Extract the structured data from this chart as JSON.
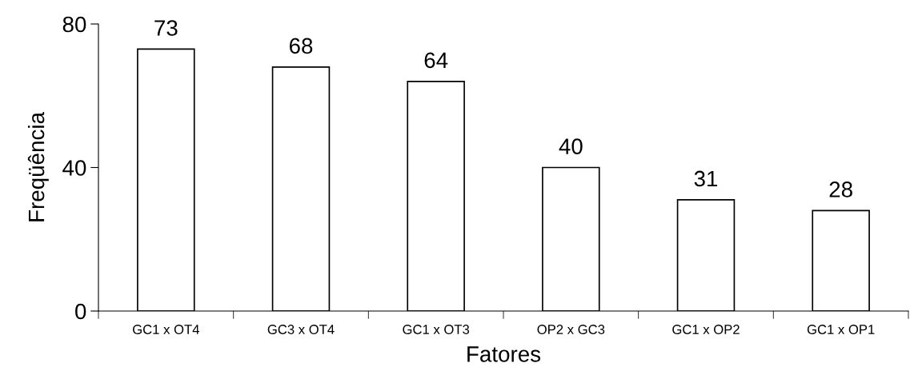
{
  "chart_data": {
    "type": "bar",
    "xlabel": "Fatores",
    "ylabel": "Freqüência",
    "categories": [
      "GC1 x OT4",
      "GC3 x OT4",
      "GC1 x OT3",
      "OP2 x GC3",
      "GC1 x OP2",
      "GC1 x OP1"
    ],
    "values": [
      73,
      68,
      64,
      40,
      31,
      28
    ],
    "color": "#ffffff",
    "ylim": [
      0,
      80
    ],
    "yticks": [
      0,
      40,
      80
    ],
    "data_labels": true,
    "grid": false,
    "legend": false
  }
}
